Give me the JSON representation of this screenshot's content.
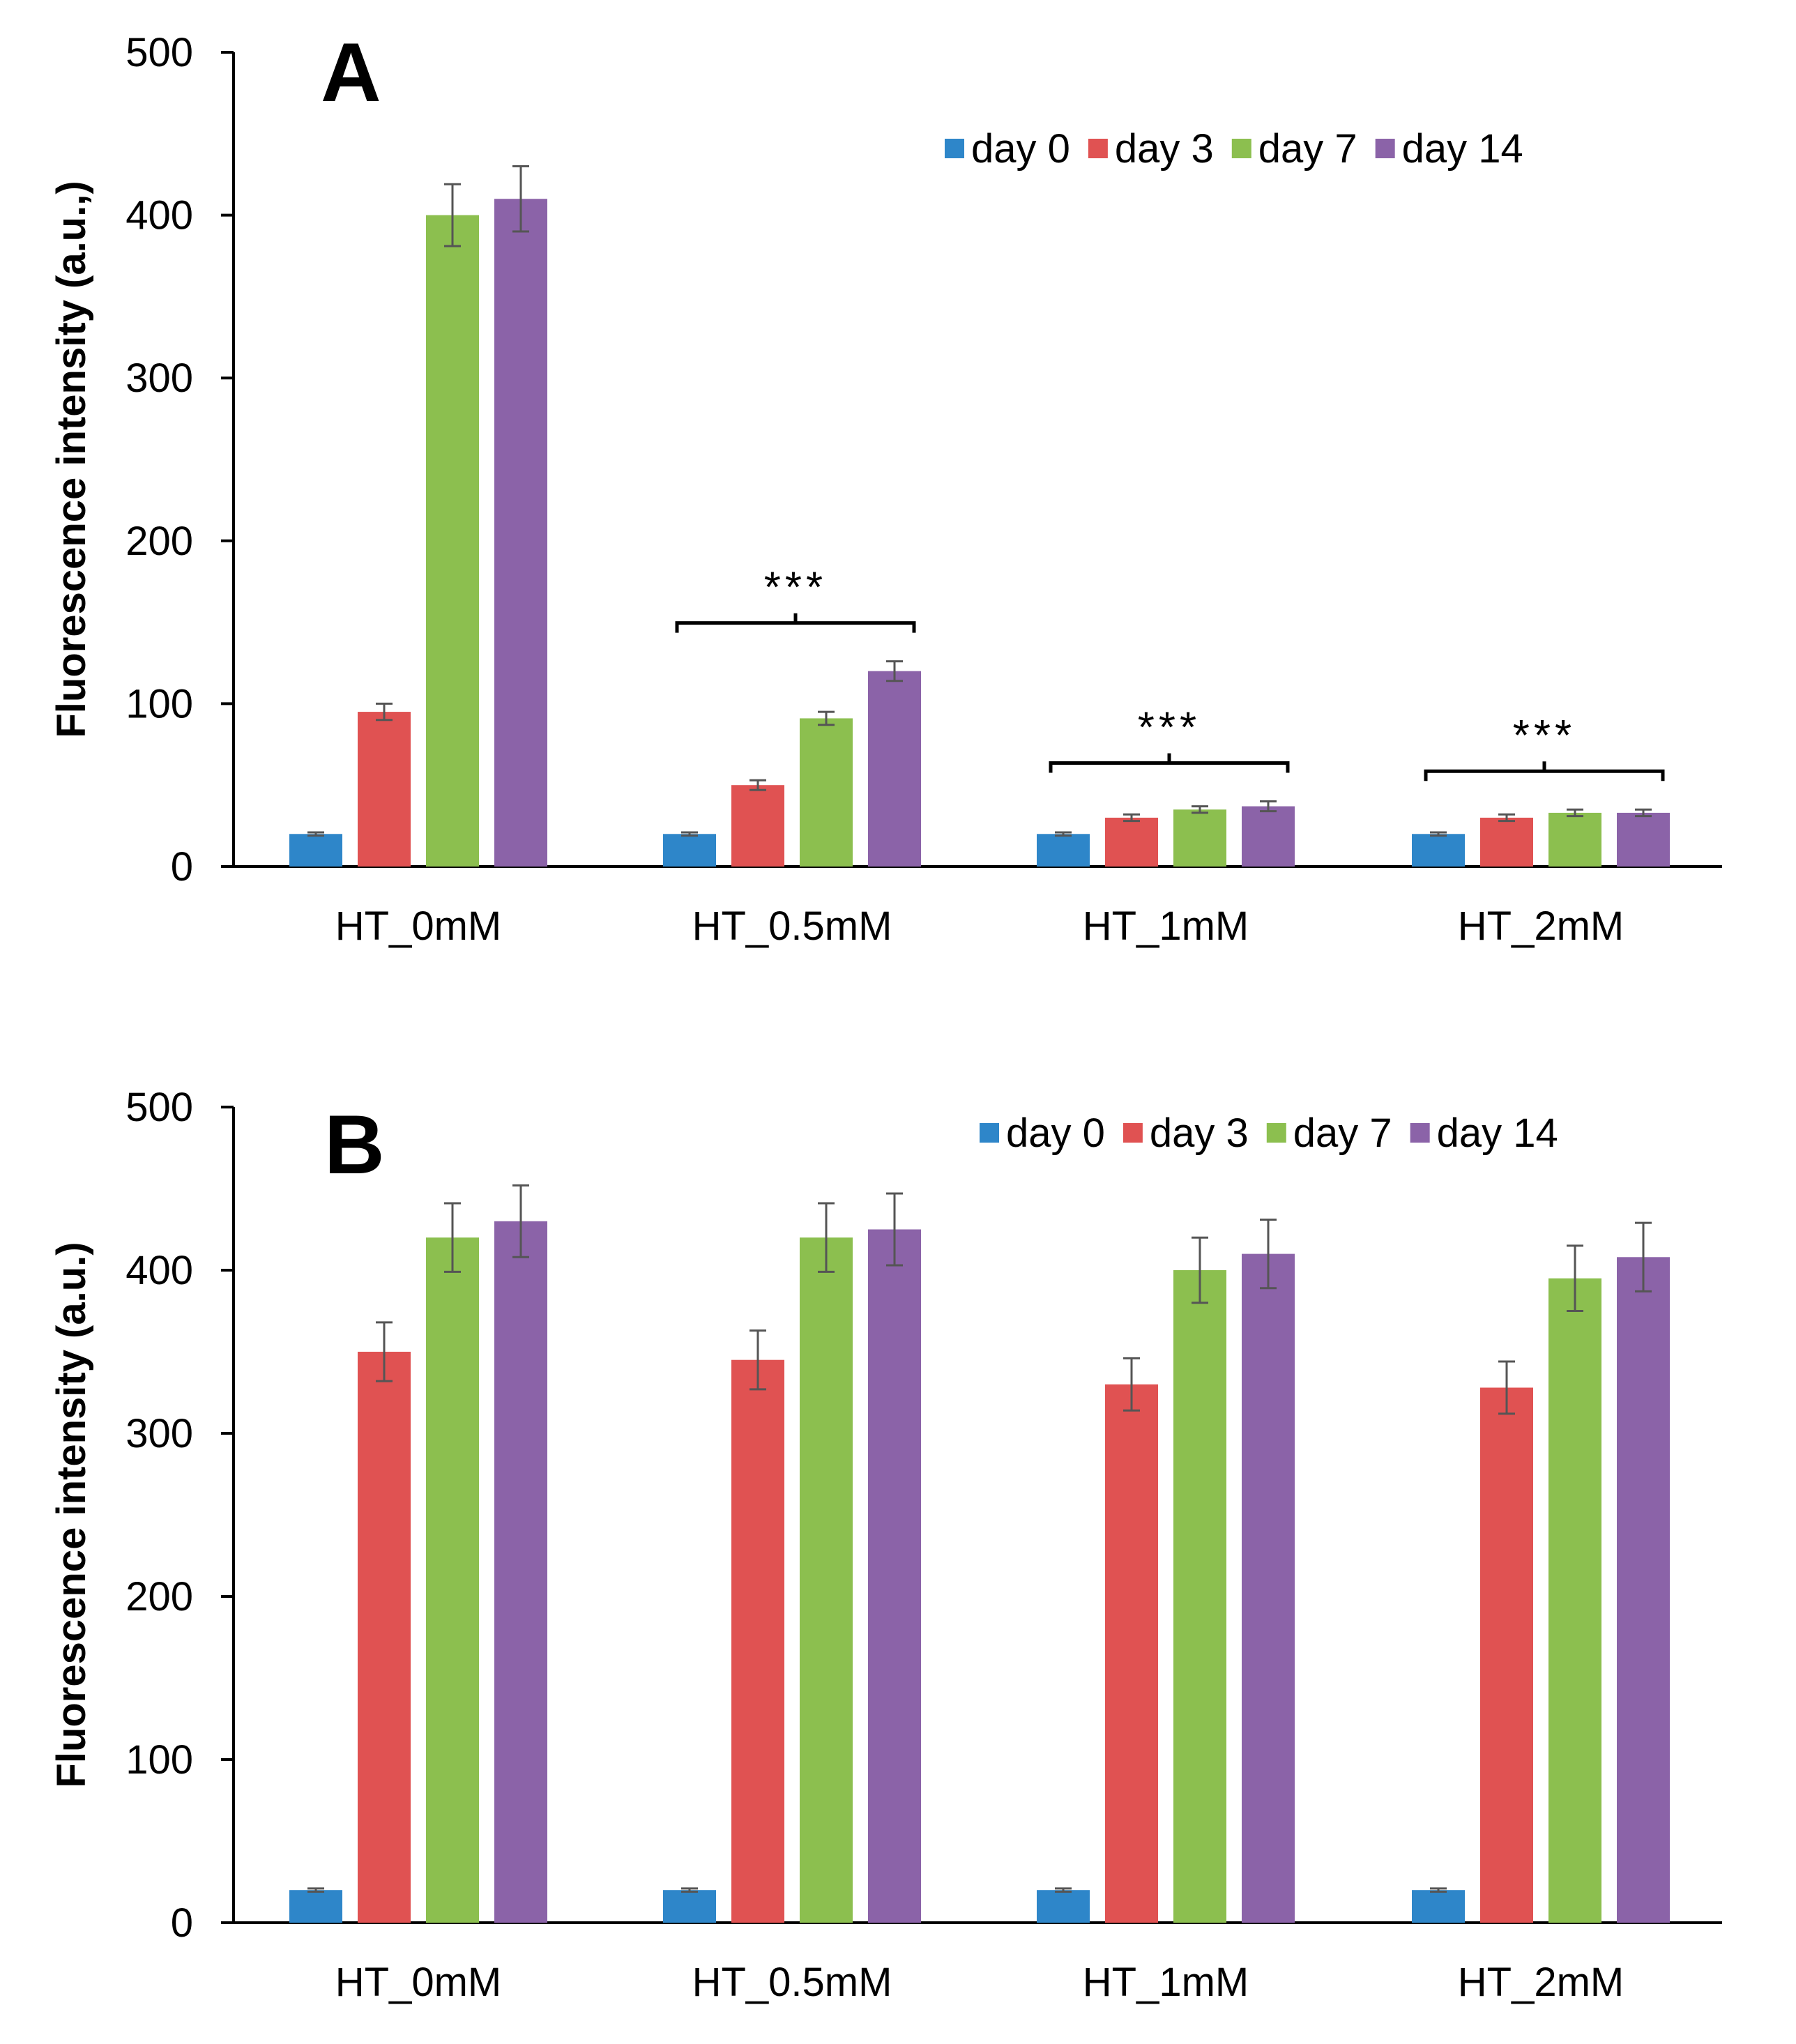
{
  "chart_data": [
    {
      "type": "bar",
      "panel_label": "A",
      "ylabel": "Fluorescence intensity (a.u.,)",
      "xlabel": "",
      "ylim": [
        0,
        500
      ],
      "yticks": [
        "0",
        "100",
        "200",
        "300",
        "400",
        "500"
      ],
      "categories": [
        "HT_0mM",
        "HT_0.5mM",
        "HT_1mM",
        "HT_2mM"
      ],
      "legend_position": "top-right",
      "series": [
        {
          "name": "day 0",
          "color": "#2E86C9",
          "values": [
            20,
            20,
            20,
            20
          ],
          "errors": [
            1,
            1,
            1,
            1
          ]
        },
        {
          "name": "day 3",
          "color": "#E05252",
          "values": [
            95,
            50,
            30,
            30
          ],
          "errors": [
            5,
            3,
            2,
            2
          ]
        },
        {
          "name": "day 7",
          "color": "#8CBF4F",
          "values": [
            400,
            91,
            35,
            33
          ],
          "errors": [
            19,
            4,
            2,
            2
          ]
        },
        {
          "name": "day 14",
          "color": "#8B63A8",
          "values": [
            410,
            120,
            37,
            33
          ],
          "errors": [
            20,
            6,
            3,
            2
          ]
        }
      ],
      "annotations": [
        {
          "text": "***",
          "group": 1
        },
        {
          "text": "***",
          "group": 2
        },
        {
          "text": "***",
          "group": 3
        }
      ]
    },
    {
      "type": "bar",
      "panel_label": "B",
      "ylabel": "Fluorescence intensity (a.u.)",
      "xlabel": "",
      "ylim": [
        0,
        500
      ],
      "yticks": [
        "0",
        "100",
        "200",
        "300",
        "400",
        "500"
      ],
      "categories": [
        "HT_0mM",
        "HT_0.5mM",
        "HT_1mM",
        "HT_2mM"
      ],
      "legend_position": "top-right",
      "series": [
        {
          "name": "day 0",
          "color": "#2E86C9",
          "values": [
            20,
            20,
            20,
            20
          ],
          "errors": [
            1,
            1,
            1,
            1
          ]
        },
        {
          "name": "day 3",
          "color": "#E05252",
          "values": [
            350,
            345,
            330,
            328
          ],
          "errors": [
            18,
            18,
            16,
            16
          ]
        },
        {
          "name": "day 7",
          "color": "#8CBF4F",
          "values": [
            420,
            420,
            400,
            395
          ],
          "errors": [
            21,
            21,
            20,
            20
          ]
        },
        {
          "name": "day 14",
          "color": "#8B63A8",
          "values": [
            430,
            425,
            410,
            408
          ],
          "errors": [
            22,
            22,
            21,
            21
          ]
        }
      ],
      "annotations": []
    }
  ]
}
